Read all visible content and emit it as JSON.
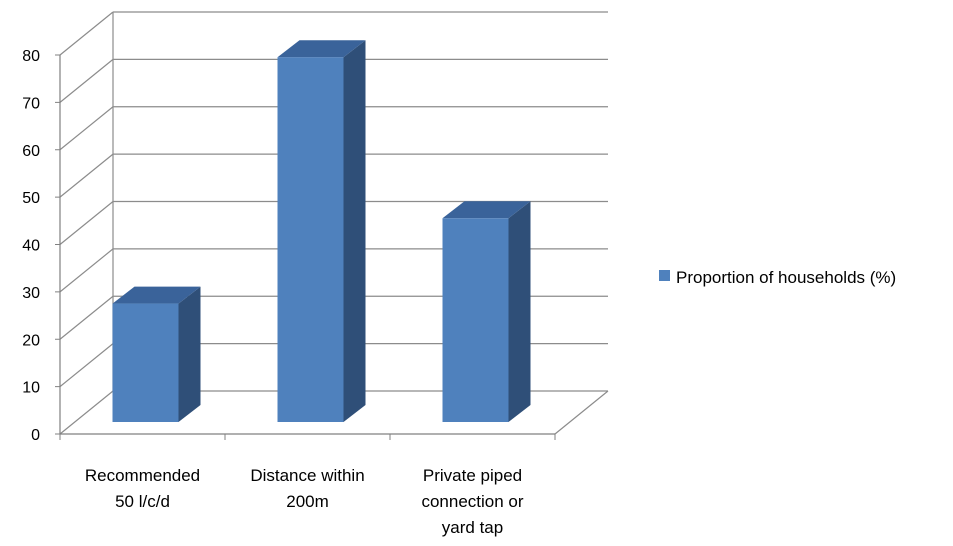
{
  "chart_data": {
    "type": "bar",
    "style": "3d-clustered-column",
    "categories": [
      [
        "Recommended",
        "50 l/c/d"
      ],
      [
        "Distance within",
        "200m"
      ],
      [
        "Private piped",
        "connection or",
        "yard tap"
      ]
    ],
    "series": [
      {
        "name": "Proportion of households (%)",
        "values": [
          25,
          77,
          43
        ]
      }
    ],
    "ylim": [
      0,
      80
    ],
    "yticks": [
      0,
      10,
      20,
      30,
      40,
      50,
      60,
      70,
      80
    ],
    "grid": true,
    "legend": "right",
    "colors": {
      "bar_front": "#4F81BD",
      "bar_side": "#2F4F78",
      "bar_top": "#3A639A",
      "grid": "#8C8C8C",
      "axis": "#808080"
    }
  }
}
